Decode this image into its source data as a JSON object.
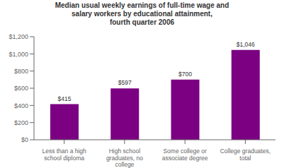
{
  "chart_data": {
    "type": "bar",
    "title": "Median usual weekly earnings of full-time wage and\nsalary workers by educational attainment,\nfourth quarter 2006",
    "categories": [
      "Less than a high\nschool diploma",
      "High school\ngraduates, no\ncollege",
      "Some college or\nassociate degree",
      "College graduates,\ntotal"
    ],
    "values": [
      415,
      597,
      700,
      1046
    ],
    "value_labels": [
      "$415",
      "$597",
      "$700",
      "$1,046"
    ],
    "data_labels": true,
    "color": "#7B0082",
    "ylim": [
      0,
      1200
    ],
    "yticks": [
      {
        "value": 0,
        "label": "$0"
      },
      {
        "value": 200,
        "label": "$200"
      },
      {
        "value": 400,
        "label": "$400"
      },
      {
        "value": 600,
        "label": "$600"
      },
      {
        "value": 800,
        "label": "$800"
      },
      {
        "value": 1000,
        "label": "$1,000"
      },
      {
        "value": 1200,
        "label": "$1,200"
      }
    ],
    "grid": false
  }
}
